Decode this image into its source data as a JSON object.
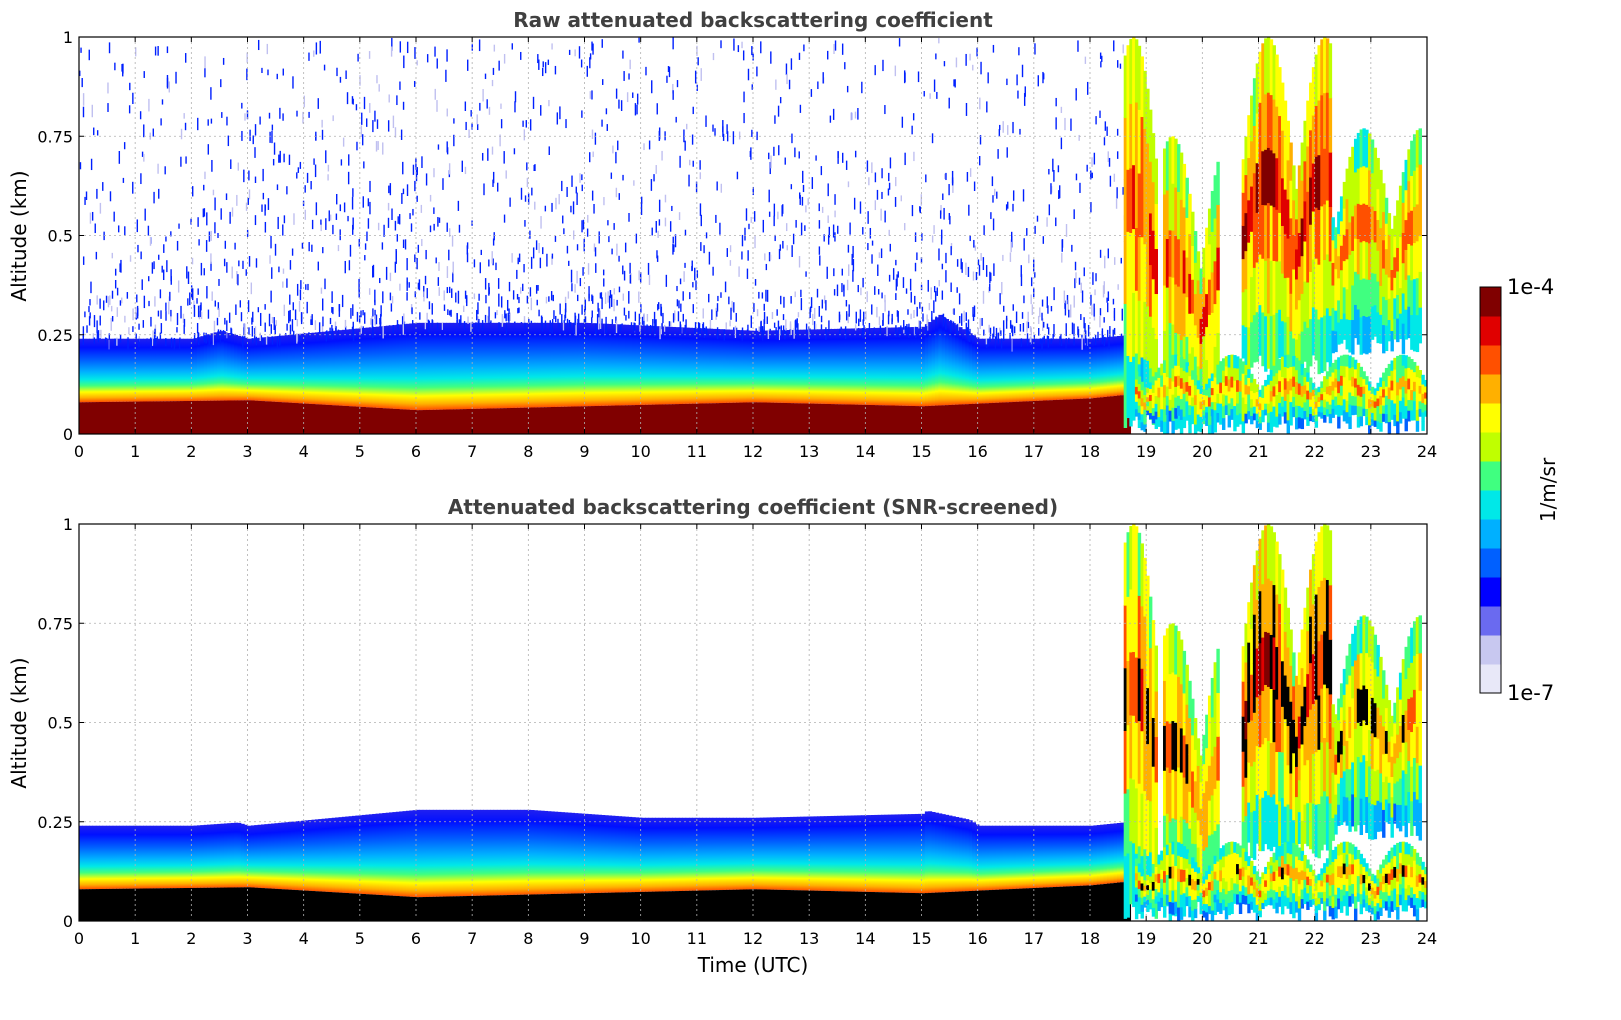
{
  "chart_data": [
    {
      "type": "heatmap",
      "title": "Raw attenuated backscattering coefficient",
      "xlabel": "",
      "ylabel": "Altitude (km)",
      "xlim": [
        0,
        24
      ],
      "ylim": [
        0,
        1
      ],
      "x_ticks": [
        "0",
        "1",
        "2",
        "3",
        "4",
        "5",
        "6",
        "7",
        "8",
        "9",
        "10",
        "11",
        "12",
        "13",
        "14",
        "15",
        "16",
        "17",
        "18",
        "19",
        "20",
        "21",
        "22",
        "23",
        "24"
      ],
      "y_ticks": [
        "0",
        "0.25",
        "0.5",
        "0.75",
        "1"
      ],
      "grid": true,
      "layers": [
        {
          "layer": "surface near-saturated layer",
          "log10_value": -4.0,
          "time": [
            0,
            3,
            6,
            9,
            12,
            15,
            18,
            18.7
          ],
          "top_km": [
            0.08,
            0.085,
            0.06,
            0.07,
            0.08,
            0.07,
            0.09,
            0.1
          ]
        },
        {
          "layer": "boundary-layer aerosol top",
          "log10_value": -6.3,
          "time": [
            0,
            2,
            2.5,
            3,
            6,
            9,
            12,
            15,
            15.3,
            16,
            17.5,
            18,
            18.7
          ],
          "top_km": [
            0.24,
            0.24,
            0.26,
            0.24,
            0.28,
            0.28,
            0.26,
            0.27,
            0.3,
            0.24,
            0.24,
            0.24,
            0.25
          ]
        }
      ],
      "clouds": [
        {
          "time": [
            18.6,
            19.2
          ],
          "altitude_km": [
            0.0,
            1.0
          ],
          "log10_value": -4.2
        },
        {
          "time": [
            19.3,
            20.3
          ],
          "altitude_km": [
            0.0,
            0.75
          ],
          "log10_value": -4.3
        },
        {
          "time": [
            20.7,
            22.3
          ],
          "altitude_km": [
            0.15,
            1.0
          ],
          "log10_value": -4.1
        },
        {
          "time": [
            22.3,
            23.9
          ],
          "altitude_km": [
            0.2,
            0.77
          ],
          "log10_value": -4.4
        },
        {
          "time": [
            18.8,
            24.0
          ],
          "altitude_km": [
            0.0,
            0.2
          ],
          "log10_value": -4.5
        }
      ],
      "noise_above_boundary_layer": true
    },
    {
      "type": "heatmap",
      "title": "Attenuated backscattering coefficient (SNR-screened)",
      "xlabel": "Time (UTC)",
      "ylabel": "Altitude (km)",
      "xlim": [
        0,
        24
      ],
      "ylim": [
        0,
        1
      ],
      "x_ticks": [
        "0",
        "1",
        "2",
        "3",
        "4",
        "5",
        "6",
        "7",
        "8",
        "9",
        "10",
        "11",
        "12",
        "13",
        "14",
        "15",
        "16",
        "17",
        "18",
        "19",
        "20",
        "21",
        "22",
        "23",
        "24"
      ],
      "y_ticks": [
        "0",
        "0.25",
        "0.5",
        "0.75",
        "1"
      ],
      "grid": true,
      "screened_signal_top_km": {
        "time": [
          0,
          2,
          3,
          5.5,
          6,
          8,
          10,
          12,
          14,
          15,
          16,
          17.5,
          18.7
        ],
        "top_km": [
          0.24,
          0.24,
          0.25,
          0.28,
          0.29,
          0.28,
          0.26,
          0.26,
          0.27,
          0.28,
          0.25,
          0.24,
          0.25
        ]
      },
      "saturated_color": "#000000"
    }
  ],
  "colorbar": {
    "label": "1/m/sr",
    "max_label": "1e-4",
    "min_label": "1e-7",
    "scale": "log",
    "range": [
      1e-07,
      0.0001
    ],
    "colors": [
      "#e8e8f8",
      "#c8c8f0",
      "#6a6af0",
      "#0000ff",
      "#0060ff",
      "#00b0ff",
      "#00e8e8",
      "#40ff80",
      "#c0ff00",
      "#ffff00",
      "#ffb000",
      "#ff5000",
      "#e00000",
      "#800000"
    ]
  }
}
